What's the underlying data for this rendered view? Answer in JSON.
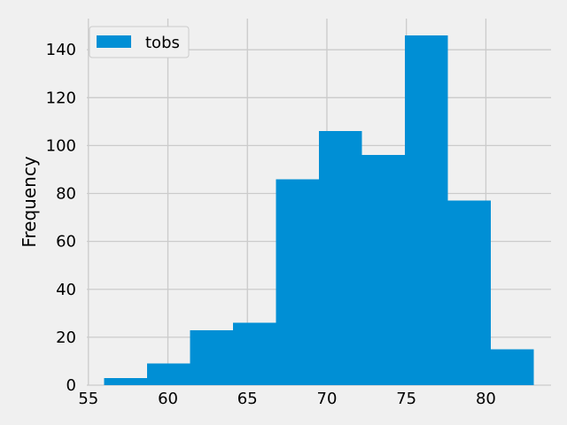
{
  "chart_data": {
    "type": "bar",
    "title": "",
    "xlabel": "",
    "ylabel": "Frequency",
    "bin_edges": [
      56,
      58.7,
      61.4,
      64.1,
      66.8,
      69.5,
      72.2,
      74.9,
      77.6,
      80.3,
      83
    ],
    "values": [
      3,
      9,
      23,
      26,
      86,
      106,
      96,
      146,
      77,
      15
    ],
    "xlim": [
      54.9,
      84.1
    ],
    "ylim": [
      0,
      153
    ],
    "xticks": [
      55,
      60,
      65,
      70,
      75,
      80
    ],
    "yticks": [
      0,
      20,
      40,
      60,
      80,
      100,
      120,
      140
    ],
    "grid": true,
    "legend_position": "top-left",
    "series": [
      {
        "name": "tobs",
        "color": "#008fd5"
      }
    ]
  },
  "colors": {
    "background": "#f0f0f0",
    "grid": "#cbcbcb",
    "bar": "#008fd5"
  }
}
